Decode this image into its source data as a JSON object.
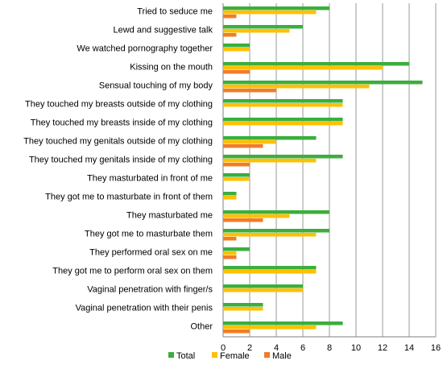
{
  "chart_data": {
    "type": "bar",
    "orientation": "horizontal",
    "categories": [
      "Tried to seduce me",
      "Lewd and suggestive talk",
      "We watched pornography together",
      "Kissing on the mouth",
      "Sensual touching of my body",
      "They touched my breasts outside of my clothing",
      "They touched my breasts inside of my clothing",
      "They touched my genitals outside of my clothing",
      "They touched my genitals inside of my clothing",
      "They masturbated in front of me",
      "They got me to masturbate in front of them",
      "They masturbated me",
      "They got me to masturbate them",
      "They performed oral sex on me",
      "They got me to perform oral sex on them",
      "Vaginal penetration with finger/s",
      "Vaginal penetration with their penis",
      "Other"
    ],
    "series": [
      {
        "name": "Total",
        "color": "#3cae3c",
        "values": [
          8,
          6,
          2,
          14,
          15,
          9,
          9,
          7,
          9,
          2,
          1,
          8,
          8,
          2,
          7,
          6,
          3,
          9
        ]
      },
      {
        "name": "Female",
        "color": "#ffc000",
        "values": [
          7,
          5,
          2,
          12,
          11,
          9,
          9,
          4,
          7,
          2,
          1,
          5,
          7,
          1,
          7,
          6,
          3,
          7
        ]
      },
      {
        "name": "Male",
        "color": "#f07c2a",
        "values": [
          1,
          1,
          0,
          2,
          4,
          0,
          0,
          3,
          2,
          0,
          0,
          3,
          1,
          1,
          0,
          0,
          0,
          2
        ]
      }
    ],
    "xlim": [
      0,
      16
    ],
    "xticks": [
      0,
      2,
      4,
      6,
      8,
      10,
      12,
      14,
      16
    ],
    "grid": "vertical",
    "legend": "bottom"
  }
}
